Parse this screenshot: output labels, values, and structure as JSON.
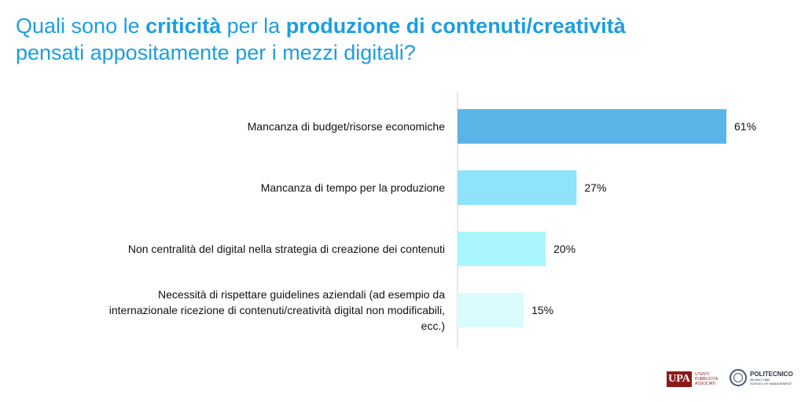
{
  "title": {
    "part1": "Quali sono le ",
    "bold1": "criticità",
    "part2": " per la ",
    "bold2": "produzione di contenuti/creatività",
    "line2": "pensati appositamente per i mezzi digitali?"
  },
  "chart_data": {
    "type": "bar",
    "orientation": "horizontal",
    "categories": [
      [
        "Mancanza di budget/risorse economiche"
      ],
      [
        "Mancanza di tempo per la produzione"
      ],
      [
        "Non centralità del digital nella strategia di creazione dei contenuti"
      ],
      [
        "Necessità di rispettare guidelines aziendali (ad esempio da",
        "internazionale ricezione di contenuti/creatività digital non modificabili,",
        "ecc.)"
      ]
    ],
    "values": [
      61,
      27,
      20,
      15
    ],
    "value_labels": [
      "61%",
      "27%",
      "20%",
      "15%"
    ],
    "colors": [
      "#5ab4e8",
      "#8fe3fa",
      "#a9f6fc",
      "#dafbfd"
    ],
    "xlim": [
      0,
      61
    ],
    "grid": false
  },
  "logos": {
    "upa": {
      "mark": "UPA",
      "lines": [
        "UTENTI",
        "PUBBLICITÀ",
        "ASSOCIATI"
      ]
    },
    "polimi": {
      "name": "POLITECNICO",
      "lines": [
        "MILANO 1863",
        "SCHOOL OF MANAGEMENT"
      ]
    }
  }
}
